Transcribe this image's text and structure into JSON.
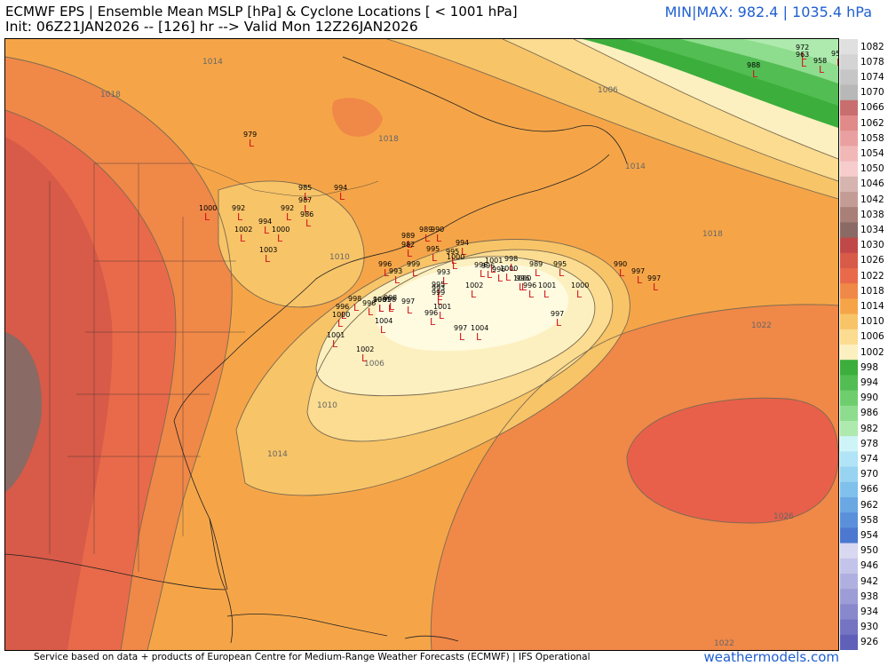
{
  "header": {
    "title": "ECMWF EPS | Ensemble Mean MSLP [hPa] & Cyclone Locations [ < 1001 hPa]",
    "init_line": "Init: 06Z21JAN2026 -- [126] hr --> Valid Mon 12Z26JAN2026",
    "minmax": "MIN|MAX: 982.4 | 1035.4 hPa"
  },
  "footer": {
    "credit": "Service based on data + products of European Centre for Medium-Range Weather Forecasts (ECMWF) | IFS Operational",
    "site": "weathermodels.com"
  },
  "colorbar": {
    "labels": [
      "1082",
      "1078",
      "1074",
      "1070",
      "1066",
      "1062",
      "1058",
      "1054",
      "1050",
      "1046",
      "1042",
      "1038",
      "1034",
      "1030",
      "1026",
      "1022",
      "1018",
      "1014",
      "1010",
      "1006",
      "1002",
      "998",
      "994",
      "990",
      "986",
      "982",
      "978",
      "974",
      "970",
      "966",
      "962",
      "958",
      "954",
      "950",
      "946",
      "942",
      "938",
      "934",
      "930",
      "926"
    ],
    "colors": [
      "#e0e0e0",
      "#d4d4d4",
      "#c6c6c6",
      "#b8b8b8",
      "#c86e6e",
      "#e08a8a",
      "#eaa0a0",
      "#f2b8b8",
      "#f6cccc",
      "#d6b4b0",
      "#c49c96",
      "#a88078",
      "#8a6a64",
      "#c04848",
      "#d85a48",
      "#e86a4a",
      "#f08848",
      "#f5a548",
      "#f8c468",
      "#fbdc90",
      "#fdf0c0",
      "#3cae3c",
      "#52bd52",
      "#6ece6e",
      "#8edc8e",
      "#aeeaae",
      "#cef4f8",
      "#b0e4f6",
      "#98d4f2",
      "#80c0ec",
      "#6aa8e4",
      "#5a90da",
      "#4c78d0",
      "#d8d8f0",
      "#c4c4ea",
      "#b0b0e0",
      "#9c9cd6",
      "#8888cc",
      "#7474c2",
      "#6060b8"
    ]
  },
  "isobar_labels": [
    "1014",
    "1018",
    "1018",
    "1006",
    "1014",
    "1018",
    "1010",
    "1006",
    "1010",
    "1014",
    "1022",
    "1026",
    "1022"
  ],
  "cyclones": [
    {
      "v": "972"
    },
    {
      "v": "963"
    },
    {
      "v": "958"
    },
    {
      "v": "954"
    },
    {
      "v": "988"
    },
    {
      "v": "979"
    },
    {
      "v": "985"
    },
    {
      "v": "994"
    },
    {
      "v": "987"
    },
    {
      "v": "1000"
    },
    {
      "v": "992"
    },
    {
      "v": "992"
    },
    {
      "v": "986"
    },
    {
      "v": "994"
    },
    {
      "v": "1002"
    },
    {
      "v": "1000"
    },
    {
      "v": "1003"
    },
    {
      "v": "989"
    },
    {
      "v": "982"
    },
    {
      "v": "989"
    },
    {
      "v": "990"
    },
    {
      "v": "994"
    },
    {
      "v": "995"
    },
    {
      "v": "995"
    },
    {
      "v": "996"
    },
    {
      "v": "999"
    },
    {
      "v": "1000"
    },
    {
      "v": "998"
    },
    {
      "v": "996"
    },
    {
      "v": "993"
    },
    {
      "v": "993"
    },
    {
      "v": "996"
    },
    {
      "v": "1001"
    },
    {
      "v": "989"
    },
    {
      "v": "995"
    },
    {
      "v": "996"
    },
    {
      "v": "1000"
    },
    {
      "v": "1000"
    },
    {
      "v": "996"
    },
    {
      "v": "996"
    },
    {
      "v": "1001"
    },
    {
      "v": "1000"
    },
    {
      "v": "1002"
    },
    {
      "v": "990"
    },
    {
      "v": "997"
    },
    {
      "v": "997"
    },
    {
      "v": "998"
    },
    {
      "v": "996"
    },
    {
      "v": "996"
    },
    {
      "v": "1001"
    },
    {
      "v": "998"
    },
    {
      "v": "996"
    },
    {
      "v": "1000"
    },
    {
      "v": "1004"
    },
    {
      "v": "997"
    },
    {
      "v": "998"
    },
    {
      "v": "995"
    },
    {
      "v": "993"
    },
    {
      "v": "999"
    },
    {
      "v": "1001"
    },
    {
      "v": "996"
    },
    {
      "v": "1001"
    },
    {
      "v": "1002"
    },
    {
      "v": "997"
    },
    {
      "v": "1004"
    },
    {
      "v": "997"
    }
  ],
  "cyclone_marker": "L"
}
